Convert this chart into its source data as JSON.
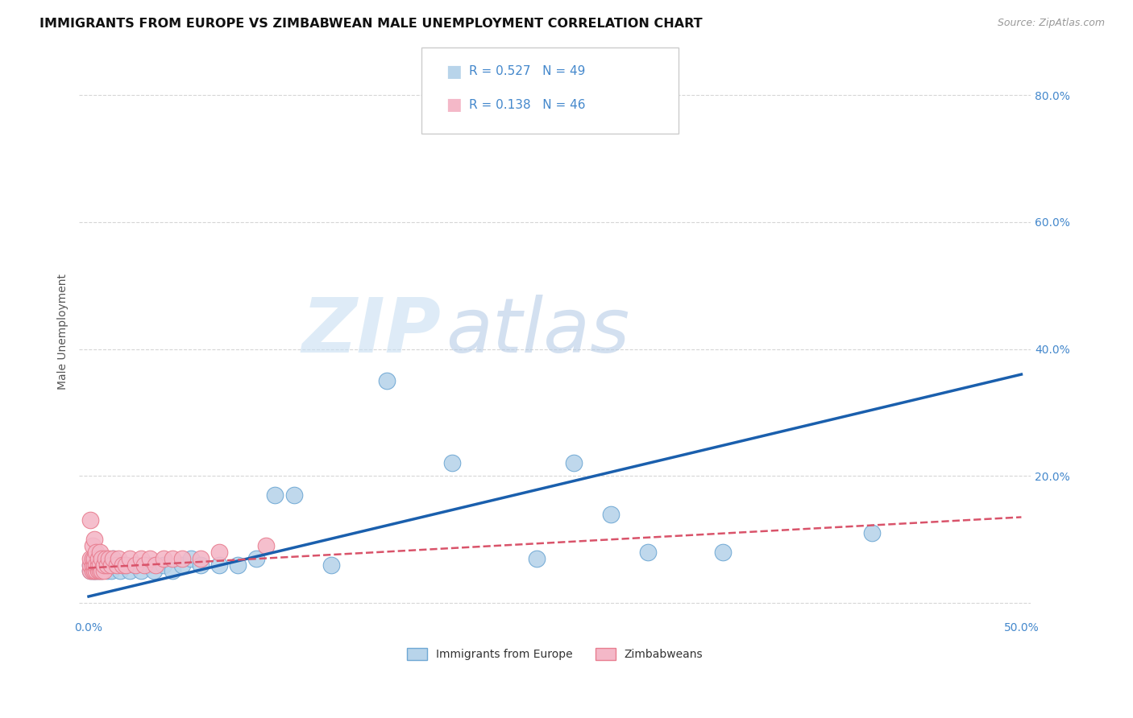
{
  "title": "IMMIGRANTS FROM EUROPE VS ZIMBABWEAN MALE UNEMPLOYMENT CORRELATION CHART",
  "source": "Source: ZipAtlas.com",
  "ylabel": "Male Unemployment",
  "y_ticks": [
    0.0,
    0.2,
    0.4,
    0.6,
    0.8
  ],
  "y_tick_labels": [
    "",
    "20.0%",
    "40.0%",
    "60.0%",
    "80.0%"
  ],
  "x_ticks": [
    0.0,
    0.1,
    0.2,
    0.3,
    0.4,
    0.5
  ],
  "x_tick_labels_visible": [
    "0.0%",
    "",
    "",
    "",
    "",
    "50.0%"
  ],
  "xlim": [
    -0.005,
    0.505
  ],
  "ylim": [
    -0.025,
    0.88
  ],
  "blue_scatter_x": [
    0.001,
    0.001,
    0.002,
    0.002,
    0.002,
    0.003,
    0.003,
    0.003,
    0.004,
    0.004,
    0.005,
    0.005,
    0.006,
    0.006,
    0.007,
    0.007,
    0.008,
    0.009,
    0.01,
    0.01,
    0.012,
    0.013,
    0.015,
    0.017,
    0.02,
    0.022,
    0.025,
    0.028,
    0.032,
    0.035,
    0.04,
    0.045,
    0.05,
    0.055,
    0.06,
    0.07,
    0.08,
    0.09,
    0.1,
    0.11,
    0.13,
    0.16,
    0.195,
    0.24,
    0.26,
    0.28,
    0.3,
    0.34,
    0.42
  ],
  "blue_scatter_y": [
    0.06,
    0.05,
    0.06,
    0.05,
    0.07,
    0.05,
    0.06,
    0.07,
    0.06,
    0.05,
    0.06,
    0.05,
    0.06,
    0.07,
    0.05,
    0.06,
    0.07,
    0.06,
    0.05,
    0.06,
    0.05,
    0.07,
    0.06,
    0.05,
    0.06,
    0.05,
    0.06,
    0.05,
    0.06,
    0.05,
    0.06,
    0.05,
    0.06,
    0.07,
    0.06,
    0.06,
    0.06,
    0.07,
    0.17,
    0.17,
    0.06,
    0.35,
    0.22,
    0.07,
    0.22,
    0.14,
    0.08,
    0.08,
    0.11
  ],
  "pink_scatter_x": [
    0.001,
    0.001,
    0.001,
    0.001,
    0.002,
    0.002,
    0.002,
    0.002,
    0.003,
    0.003,
    0.003,
    0.003,
    0.004,
    0.004,
    0.004,
    0.005,
    0.005,
    0.005,
    0.006,
    0.006,
    0.006,
    0.007,
    0.007,
    0.008,
    0.008,
    0.009,
    0.01,
    0.011,
    0.012,
    0.013,
    0.015,
    0.016,
    0.018,
    0.02,
    0.022,
    0.025,
    0.028,
    0.03,
    0.033,
    0.036,
    0.04,
    0.045,
    0.05,
    0.06,
    0.07,
    0.095
  ],
  "pink_scatter_y": [
    0.05,
    0.06,
    0.07,
    0.13,
    0.05,
    0.06,
    0.07,
    0.09,
    0.05,
    0.06,
    0.07,
    0.1,
    0.05,
    0.06,
    0.08,
    0.05,
    0.06,
    0.07,
    0.05,
    0.06,
    0.08,
    0.05,
    0.07,
    0.05,
    0.06,
    0.07,
    0.06,
    0.07,
    0.06,
    0.07,
    0.06,
    0.07,
    0.06,
    0.06,
    0.07,
    0.06,
    0.07,
    0.06,
    0.07,
    0.06,
    0.07,
    0.07,
    0.07,
    0.07,
    0.08,
    0.09
  ],
  "blue_line_x": [
    0.0,
    0.5
  ],
  "blue_line_y": [
    0.01,
    0.36
  ],
  "pink_line_x": [
    0.0,
    0.5
  ],
  "pink_line_y": [
    0.055,
    0.135
  ],
  "scatter_size": 220,
  "blue_scatter_color": "#b8d4ea",
  "blue_scatter_edge": "#6fa8d4",
  "pink_scatter_color": "#f4b8c8",
  "pink_scatter_edge": "#e87d8f",
  "blue_line_color": "#1a5fad",
  "pink_line_color": "#d9536a",
  "grid_color": "#cccccc",
  "background_color": "#ffffff",
  "title_fontsize": 11.5,
  "axis_label_fontsize": 10,
  "tick_fontsize": 10,
  "tick_color": "#4488cc",
  "watermark_zip": "ZIP",
  "watermark_atlas": "atlas",
  "watermark_color_zip": "#c8dff2",
  "watermark_color_atlas": "#b0c8e4"
}
